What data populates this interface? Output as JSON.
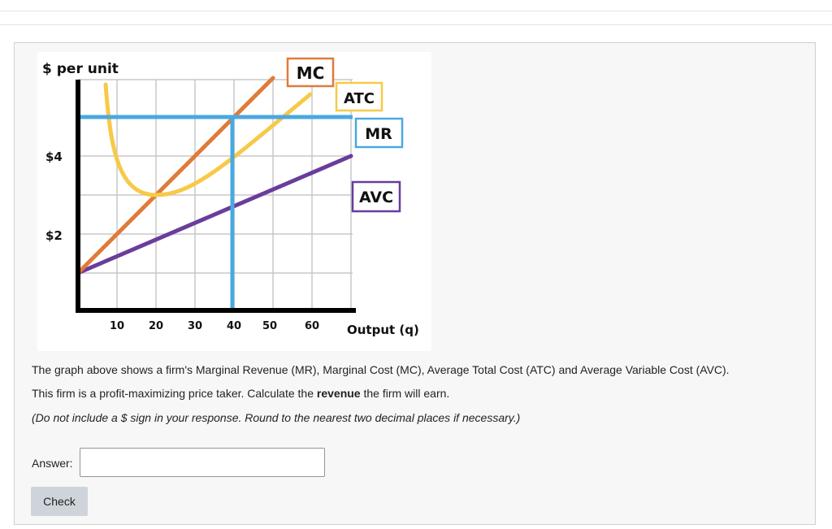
{
  "graph": {
    "y_axis_title": "$ per unit",
    "x_axis_title": "Output (q)",
    "y_ticks": [
      {
        "label": "$4",
        "value": 4
      },
      {
        "label": "$2",
        "value": 2
      }
    ],
    "x_ticks": [
      "10",
      "20",
      "30",
      "40",
      "50",
      "60"
    ],
    "curve_labels": {
      "mc": "MC",
      "atc": "ATC",
      "mr": "MR",
      "avc": "AVC"
    },
    "colors": {
      "mc": "#e07b39",
      "atc": "#f7c948",
      "mr": "#4aa8e0",
      "avc": "#6a3d9a",
      "axis": "#000000",
      "grid": "#c8c8c8"
    }
  },
  "question": {
    "line1": "The graph above shows a firm's Marginal Revenue (MR), Marginal Cost (MC), Average Total Cost (ATC) and Average Variable Cost (AVC).",
    "line2_before": "This firm is a profit-maximizing price taker. Calculate the ",
    "line2_bold": "revenue",
    "line2_after": " the firm will earn.",
    "line3": "(Do not include a $ sign in your response. Round to the nearest two decimal places if necessary.)"
  },
  "answer": {
    "label": "Answer:",
    "value": "",
    "placeholder": ""
  },
  "check_button_label": "Check"
}
